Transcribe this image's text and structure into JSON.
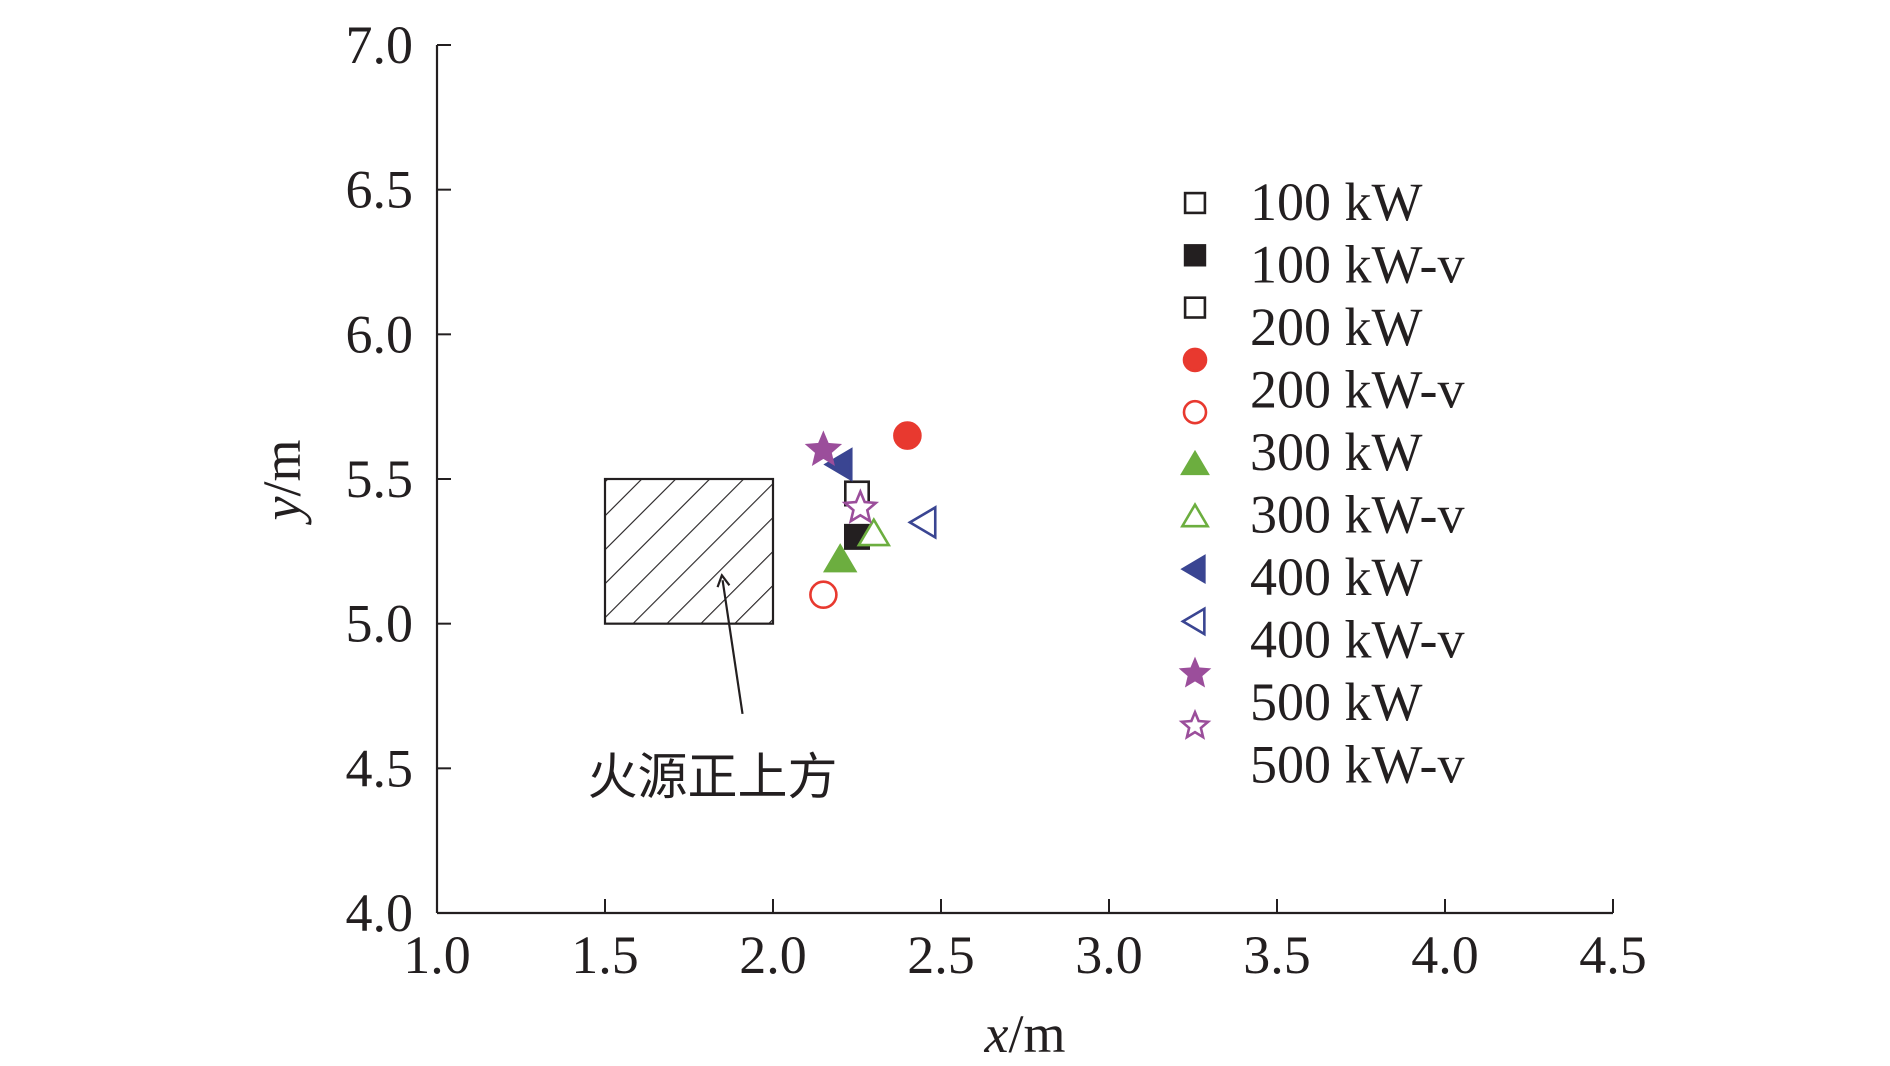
{
  "chart_data": {
    "type": "scatter",
    "xlabel_var": "x",
    "xlabel_unit": "/m",
    "ylabel_var": "y",
    "ylabel_unit": "/m",
    "xlim": [
      1.0,
      4.5
    ],
    "ylim": [
      4.0,
      7.0
    ],
    "xticks": [
      "1.0",
      "1.5",
      "2.0",
      "2.5",
      "3.0",
      "3.5",
      "4.0",
      "4.5"
    ],
    "yticks": [
      "4.0",
      "4.5",
      "5.0",
      "5.5",
      "6.0",
      "6.5",
      "7.0"
    ],
    "grid": false,
    "legend_position": "right",
    "series": [
      {
        "name": "100 kW",
        "marker": "square-open",
        "color": "#231f20",
        "x": [
          2.25
        ],
        "y": [
          5.45
        ]
      },
      {
        "name": "100 kW-v",
        "marker": "square-filled",
        "color": "#231f20",
        "x": [
          2.25
        ],
        "y": [
          5.3
        ]
      },
      {
        "name": "200 kW",
        "marker": "square-open",
        "color": "#231f20",
        "x": [
          2.25
        ],
        "y": [
          5.45
        ]
      },
      {
        "name": "200 kW-v",
        "marker": "circle-filled",
        "color": "#e8392f",
        "x": [
          2.4
        ],
        "y": [
          5.65
        ]
      },
      {
        "name": "300 kW",
        "marker": "circle-open",
        "color": "#e8392f",
        "x": [
          2.15
        ],
        "y": [
          5.1
        ]
      },
      {
        "name": "300 kW-v",
        "marker": "triangle-up-filled",
        "color": "#6cae3f",
        "x": [
          2.2
        ],
        "y": [
          5.22
        ]
      },
      {
        "name": "400 kW",
        "marker": "triangle-up-open",
        "color": "#6cae3f",
        "x": [
          2.3
        ],
        "y": [
          5.31
        ]
      },
      {
        "name": "400 kW-v",
        "marker": "triangle-left-filled",
        "color": "#3a4592",
        "x": [
          2.2
        ],
        "y": [
          5.55
        ]
      },
      {
        "name": "500 kW",
        "marker": "triangle-left-open",
        "color": "#3a4592",
        "x": [
          2.45
        ],
        "y": [
          5.35
        ]
      },
      {
        "name": "500 kW-v",
        "marker": "star-filled",
        "color": "#9b4e9b",
        "x": [
          2.15
        ],
        "y": [
          5.6
        ]
      },
      {
        "name": "",
        "marker": "star-open",
        "color": "#9b4e9b",
        "x": [
          2.26
        ],
        "y": [
          5.4
        ]
      }
    ],
    "legend_markers": [
      "square-open",
      "square-filled",
      "square-open",
      "circle-filled",
      "circle-open",
      "triangle-up-filled",
      "triangle-up-open",
      "triangle-left-filled",
      "triangle-left-open",
      "star-filled",
      "star-open"
    ],
    "legend_colors": [
      "#231f20",
      "#231f20",
      "#231f20",
      "#e8392f",
      "#e8392f",
      "#6cae3f",
      "#6cae3f",
      "#3a4592",
      "#3a4592",
      "#9b4e9b",
      "#9b4e9b"
    ],
    "region": {
      "x": [
        1.5,
        2.0
      ],
      "y": [
        5.0,
        5.5
      ],
      "fill": "hatched"
    },
    "annotation": {
      "text": "火源正上方",
      "arrow_to": [
        1.85,
        5.15
      ],
      "text_at": [
        1.82,
        4.55
      ]
    }
  }
}
